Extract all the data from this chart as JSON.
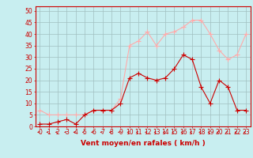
{
  "x": [
    0,
    1,
    2,
    3,
    4,
    5,
    6,
    7,
    8,
    9,
    10,
    11,
    12,
    13,
    14,
    15,
    16,
    17,
    18,
    19,
    20,
    21,
    22,
    23
  ],
  "wind_avg": [
    1,
    1,
    2,
    3,
    1,
    5,
    7,
    7,
    7,
    10,
    21,
    23,
    21,
    20,
    21,
    25,
    31,
    29,
    17,
    10,
    20,
    17,
    7,
    7
  ],
  "wind_gust": [
    7,
    5,
    5,
    5,
    5,
    5,
    7,
    7,
    7,
    12,
    35,
    37,
    41,
    35,
    40,
    41,
    43,
    46,
    46,
    40,
    33,
    29,
    31,
    40
  ],
  "avg_color": "#cc0000",
  "gust_color": "#ffaaaa",
  "bg_color": "#c8eef0",
  "grid_color": "#a0c0c0",
  "xlabel": "Vent moyen/en rafales ( km/h )",
  "ylim": [
    0,
    52
  ],
  "yticks": [
    0,
    5,
    10,
    15,
    20,
    25,
    30,
    35,
    40,
    45,
    50
  ],
  "xlim": [
    -0.5,
    23.5
  ],
  "xlabel_color": "#cc0000",
  "xlabel_fontsize": 6.5,
  "tick_fontsize": 5.5,
  "marker_size": 2.5,
  "linewidth": 0.8
}
